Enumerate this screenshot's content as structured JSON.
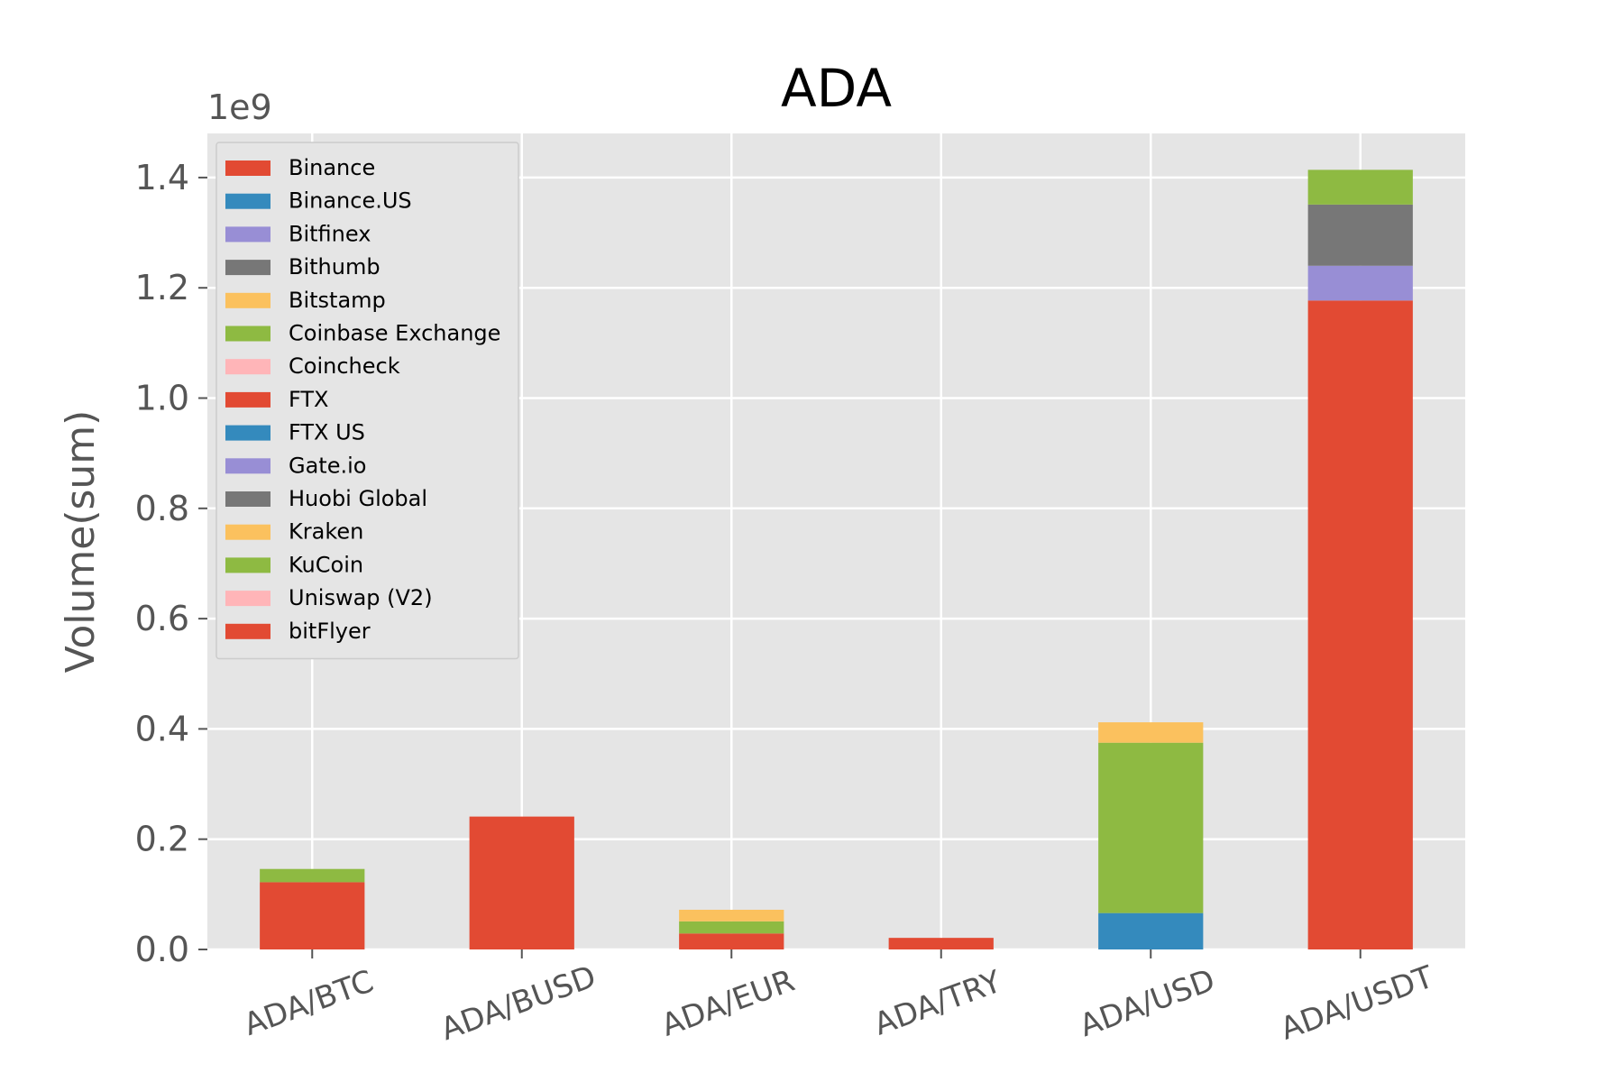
{
  "chart_data": {
    "type": "bar",
    "stacked": true,
    "title": "ADA",
    "xlabel": "",
    "ylabel": "Volume(sum)",
    "y_offset_label": "1e9",
    "ylim": [
      0,
      1.48
    ],
    "yticks": [
      0.0,
      0.2,
      0.4,
      0.6,
      0.8,
      1.0,
      1.2,
      1.4
    ],
    "ytick_labels": [
      "0.0",
      "0.2",
      "0.4",
      "0.6",
      "0.8",
      "1.0",
      "1.2",
      "1.4"
    ],
    "grid": true,
    "legend_position": "top-left",
    "categories": [
      "ADA/BTC",
      "ADA/BUSD",
      "ADA/EUR",
      "ADA/TRY",
      "ADA/USD",
      "ADA/USDT"
    ],
    "series": [
      {
        "name": "Binance",
        "color": "#E24A33",
        "values": [
          0.122,
          0.241,
          0.029,
          0.021,
          0,
          1.177
        ]
      },
      {
        "name": "Binance.US",
        "color": "#348ABD",
        "values": [
          0,
          0,
          0,
          0,
          0.066,
          0
        ]
      },
      {
        "name": "Bitfinex",
        "color": "#988ED5",
        "values": [
          0,
          0,
          0,
          0,
          0,
          0.063
        ]
      },
      {
        "name": "Bithumb",
        "color": "#777777",
        "values": [
          0,
          0,
          0,
          0,
          0,
          0.111
        ]
      },
      {
        "name": "Bitstamp",
        "color": "#FBC15E",
        "values": [
          0,
          0,
          0,
          0,
          0,
          0
        ]
      },
      {
        "name": "Coinbase Exchange",
        "color": "#8EBA42",
        "values": [
          0.024,
          0,
          0.022,
          0,
          0.309,
          0
        ]
      },
      {
        "name": "Coincheck",
        "color": "#FFB5B8",
        "values": [
          0,
          0,
          0,
          0,
          0,
          0
        ]
      },
      {
        "name": "FTX",
        "color": "#E24A33",
        "values": [
          0,
          0,
          0,
          0,
          0,
          0
        ]
      },
      {
        "name": "FTX US",
        "color": "#348ABD",
        "values": [
          0,
          0,
          0,
          0,
          0,
          0
        ]
      },
      {
        "name": "Gate.io",
        "color": "#988ED5",
        "values": [
          0,
          0,
          0,
          0,
          0,
          0
        ]
      },
      {
        "name": "Huobi Global",
        "color": "#777777",
        "values": [
          0,
          0,
          0,
          0,
          0,
          0
        ]
      },
      {
        "name": "Kraken",
        "color": "#FBC15E",
        "values": [
          0,
          0,
          0.021,
          0,
          0.037,
          0
        ]
      },
      {
        "name": "KuCoin",
        "color": "#8EBA42",
        "values": [
          0,
          0,
          0,
          0,
          0,
          0.063
        ]
      },
      {
        "name": "Uniswap (V2)",
        "color": "#FFB5B8",
        "values": [
          0,
          0,
          0,
          0,
          0,
          0
        ]
      },
      {
        "name": "bitFlyer",
        "color": "#E24A33",
        "values": [
          0,
          0,
          0,
          0,
          0,
          0
        ]
      }
    ]
  },
  "colors": {
    "plot_background": "#E5E5E5",
    "grid": "#FFFFFF"
  }
}
